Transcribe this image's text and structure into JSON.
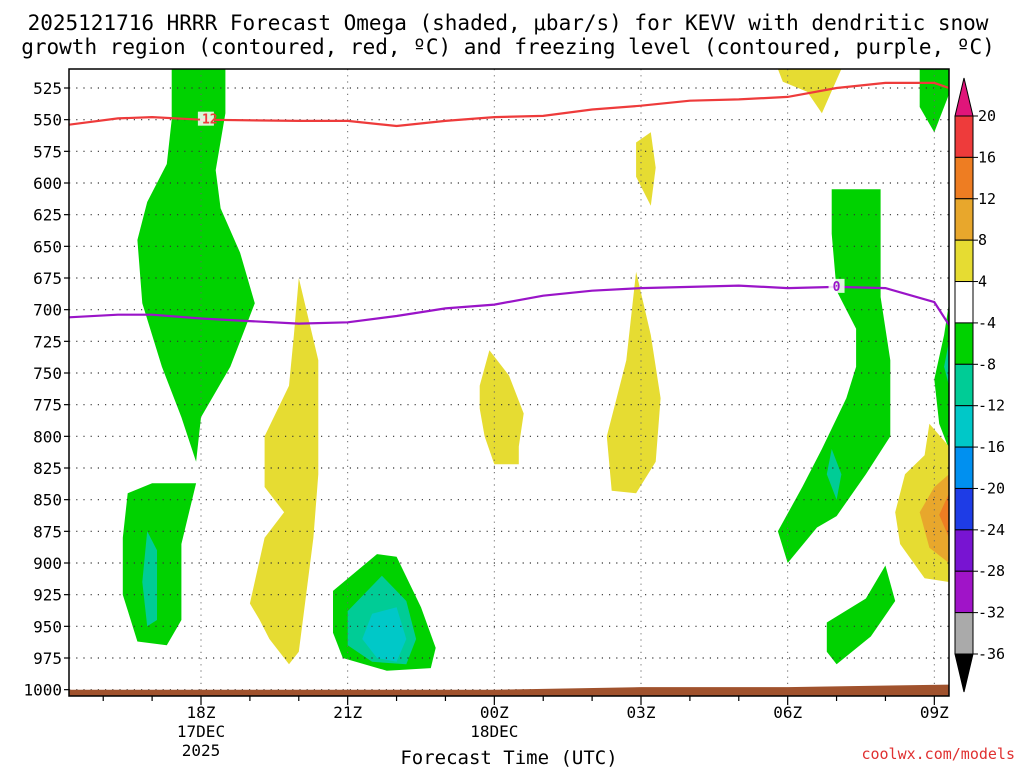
{
  "header": {
    "title_line1": "2025121716 HRRR Forecast Omega (shaded, μbar/s) for KEVV with dendritic snow",
    "title_line2": "growth region (contoured, red, ºC) and freezing level (contoured, purple, ºC)"
  },
  "footer": {
    "credit": "coolwx.com/models"
  },
  "chart_data": {
    "type": "heatmap",
    "xlabel": "Forecast Time (UTC)",
    "ylabel": "",
    "x_range_hours_from_init": [
      -0.7,
      17.3
    ],
    "y_range_hpa": [
      1005,
      510
    ],
    "y_scale": "pressure",
    "grid": true,
    "y_ticks": [
      525,
      550,
      575,
      600,
      625,
      650,
      675,
      700,
      725,
      750,
      775,
      800,
      825,
      850,
      875,
      900,
      925,
      950,
      975,
      1000
    ],
    "x_ticks": [
      {
        "hour": 2,
        "lines": [
          "18Z",
          "17DEC",
          "2025"
        ]
      },
      {
        "hour": 5,
        "lines": [
          "21Z"
        ]
      },
      {
        "hour": 8,
        "lines": [
          "00Z",
          "18DEC"
        ]
      },
      {
        "hour": 11,
        "lines": [
          "03Z"
        ]
      },
      {
        "hour": 14,
        "lines": [
          "06Z"
        ]
      },
      {
        "hour": 17,
        "lines": [
          "09Z"
        ]
      }
    ],
    "colorbar": {
      "units": "μbar/s",
      "labels": [
        "20",
        "16",
        "12",
        "8",
        "4",
        "-4",
        "-8",
        "-12",
        "-16",
        "-20",
        "-24",
        "-28",
        "-32",
        "-36"
      ],
      "bins": [
        {
          "color": "#e0157a",
          "range": "> 20"
        },
        {
          "color": "#ee3b3b",
          "range": "16 to 20"
        },
        {
          "color": "#ee7d22",
          "range": "12 to 16"
        },
        {
          "color": "#e8a72c",
          "range": "8 to 12"
        },
        {
          "color": "#e6dc32",
          "range": "4 to 8"
        },
        {
          "color": "#ffffff",
          "range": "-4 to 4"
        },
        {
          "color": "#00d200",
          "range": "-8 to -4"
        },
        {
          "color": "#00cc96",
          "range": "-12 to -8"
        },
        {
          "color": "#00c8c8",
          "range": "-16 to -12"
        },
        {
          "color": "#0090f0",
          "range": "-20 to -16"
        },
        {
          "color": "#1e3ce6",
          "range": "-24 to -20"
        },
        {
          "color": "#7814d2",
          "range": "-28 to -24"
        },
        {
          "color": "#a014c8",
          "range": "-32 to -28"
        },
        {
          "color": "#aaaaaa",
          "range": "-36 to -32"
        },
        {
          "color": "#000000",
          "range": "< -36"
        }
      ]
    },
    "contours": [
      {
        "field": "dendritic snow growth region",
        "units": "ºC",
        "color": "#ee3b3b",
        "label": "-12",
        "points": [
          [
            -0.7,
            554
          ],
          [
            0.3,
            549
          ],
          [
            1.0,
            548
          ],
          [
            2.0,
            550
          ],
          [
            4.0,
            551
          ],
          [
            5.0,
            551
          ],
          [
            6.0,
            555
          ],
          [
            7.0,
            551
          ],
          [
            8.0,
            548
          ],
          [
            9.0,
            547
          ],
          [
            10.0,
            542
          ],
          [
            11.0,
            539
          ],
          [
            12.0,
            535
          ],
          [
            13.0,
            534
          ],
          [
            14.0,
            532
          ],
          [
            15.0,
            525
          ],
          [
            16.0,
            521
          ],
          [
            17.0,
            521
          ],
          [
            17.3,
            525
          ]
        ]
      },
      {
        "field": "freezing level",
        "units": "ºC",
        "color": "#9a14c8",
        "label": "0",
        "points": [
          [
            -0.7,
            706
          ],
          [
            0.3,
            704
          ],
          [
            1.0,
            704
          ],
          [
            2.0,
            707
          ],
          [
            3.0,
            709
          ],
          [
            4.0,
            711
          ],
          [
            5.0,
            710
          ],
          [
            6.0,
            705
          ],
          [
            7.0,
            699
          ],
          [
            8.0,
            696
          ],
          [
            9.0,
            689
          ],
          [
            10.0,
            685
          ],
          [
            11.0,
            683
          ],
          [
            12.0,
            682
          ],
          [
            13.0,
            681
          ],
          [
            14.0,
            683
          ],
          [
            15.0,
            682
          ],
          [
            16.0,
            683
          ],
          [
            17.0,
            694
          ],
          [
            17.3,
            712
          ]
        ]
      }
    ],
    "terrain": {
      "color": "#a0522d",
      "surface_hpa": [
        [
          -0.7,
          1000
        ],
        [
          4.0,
          1000
        ],
        [
          8.0,
          1000
        ],
        [
          11.0,
          998
        ],
        [
          14.0,
          998
        ],
        [
          17.3,
          996
        ]
      ]
    },
    "omega_regions": [
      {
        "value_bin": "-8 to -4",
        "color": "#00d200",
        "points": [
          [
            1.4,
            510
          ],
          [
            2.5,
            510
          ],
          [
            2.5,
            545
          ],
          [
            2.3,
            590
          ],
          [
            2.4,
            620
          ],
          [
            2.8,
            655
          ],
          [
            3.1,
            695
          ],
          [
            2.6,
            745
          ],
          [
            2.0,
            785
          ],
          [
            1.9,
            820
          ],
          [
            1.6,
            785
          ],
          [
            1.2,
            745
          ],
          [
            0.8,
            695
          ],
          [
            0.7,
            645
          ],
          [
            0.9,
            615
          ],
          [
            1.3,
            585
          ],
          [
            1.4,
            550
          ]
        ]
      },
      {
        "value_bin": "-8 to -4",
        "color": "#00d200",
        "points": [
          [
            0.5,
            845
          ],
          [
            1.0,
            837
          ],
          [
            1.9,
            837
          ],
          [
            1.6,
            885
          ],
          [
            1.6,
            945
          ],
          [
            1.3,
            965
          ],
          [
            0.7,
            962
          ],
          [
            0.4,
            925
          ],
          [
            0.4,
            880
          ]
        ]
      },
      {
        "value_bin": "-12 to -8",
        "color": "#00cc96",
        "points": [
          [
            0.9,
            875
          ],
          [
            1.1,
            890
          ],
          [
            1.1,
            945
          ],
          [
            0.9,
            950
          ],
          [
            0.8,
            915
          ]
        ]
      },
      {
        "value_bin": "-8 to -4",
        "color": "#00d200",
        "points": [
          [
            4.7,
            922
          ],
          [
            5.6,
            893
          ],
          [
            6.0,
            895
          ],
          [
            6.5,
            935
          ],
          [
            6.8,
            967
          ],
          [
            6.7,
            983
          ],
          [
            5.8,
            985
          ],
          [
            4.9,
            975
          ],
          [
            4.7,
            955
          ]
        ]
      },
      {
        "value_bin": "-12 to -8",
        "color": "#00cc96",
        "points": [
          [
            5.0,
            938
          ],
          [
            5.7,
            910
          ],
          [
            6.2,
            930
          ],
          [
            6.4,
            960
          ],
          [
            6.2,
            980
          ],
          [
            5.5,
            978
          ],
          [
            5.0,
            965
          ]
        ]
      },
      {
        "value_bin": "-16 to -12",
        "color": "#00c8c8",
        "points": [
          [
            5.5,
            940
          ],
          [
            6.0,
            935
          ],
          [
            6.2,
            960
          ],
          [
            6.0,
            978
          ],
          [
            5.6,
            975
          ],
          [
            5.3,
            960
          ]
        ]
      },
      {
        "value_bin": "-8 to -4",
        "color": "#00d200",
        "points": [
          [
            14.9,
            605
          ],
          [
            15.9,
            605
          ],
          [
            15.9,
            640
          ],
          [
            15.9,
            690
          ],
          [
            16.1,
            740
          ],
          [
            16.1,
            800
          ],
          [
            15.6,
            830
          ],
          [
            15.0,
            863
          ],
          [
            14.6,
            872
          ],
          [
            14.0,
            900
          ],
          [
            13.8,
            875
          ],
          [
            14.3,
            840
          ],
          [
            14.7,
            810
          ],
          [
            15.2,
            770
          ],
          [
            15.4,
            745
          ],
          [
            15.4,
            715
          ],
          [
            15.0,
            685
          ],
          [
            14.9,
            640
          ]
        ]
      },
      {
        "value_bin": "-12 to -8",
        "color": "#00cc96",
        "points": [
          [
            14.9,
            810
          ],
          [
            15.1,
            830
          ],
          [
            15.0,
            850
          ],
          [
            14.8,
            830
          ]
        ]
      },
      {
        "value_bin": "-8 to -4",
        "color": "#00d200",
        "points": [
          [
            14.8,
            947
          ],
          [
            15.6,
            928
          ],
          [
            16.0,
            902
          ],
          [
            16.2,
            930
          ],
          [
            15.7,
            958
          ],
          [
            15.0,
            980
          ],
          [
            14.8,
            970
          ]
        ]
      },
      {
        "value_bin": "-8 to -4",
        "color": "#00d200",
        "points": [
          [
            16.7,
            510
          ],
          [
            17.3,
            510
          ],
          [
            17.3,
            530
          ],
          [
            17.0,
            560
          ],
          [
            16.7,
            540
          ]
        ]
      },
      {
        "value_bin": "-8 to -4",
        "color": "#00d200",
        "points": [
          [
            17.3,
            695
          ],
          [
            17.3,
            810
          ],
          [
            17.1,
            790
          ],
          [
            17.0,
            755
          ],
          [
            17.2,
            720
          ]
        ]
      },
      {
        "value_bin": "-12 to -8",
        "color": "#00cc96",
        "points": [
          [
            17.3,
            725
          ],
          [
            17.3,
            760
          ],
          [
            17.2,
            745
          ]
        ]
      },
      {
        "value_bin": "4 to 8",
        "color": "#e6dc32",
        "points": [
          [
            4.0,
            675
          ],
          [
            4.4,
            740
          ],
          [
            4.4,
            830
          ],
          [
            4.3,
            880
          ],
          [
            4.1,
            940
          ],
          [
            4.0,
            970
          ],
          [
            3.8,
            980
          ],
          [
            3.4,
            960
          ],
          [
            3.2,
            945
          ],
          [
            3.0,
            932
          ],
          [
            3.3,
            880
          ],
          [
            3.7,
            860
          ],
          [
            3.3,
            840
          ],
          [
            3.3,
            800
          ],
          [
            3.8,
            760
          ],
          [
            3.9,
            720
          ]
        ]
      },
      {
        "value_bin": "4 to 8",
        "color": "#e6dc32",
        "points": [
          [
            7.9,
            732
          ],
          [
            8.3,
            752
          ],
          [
            8.6,
            782
          ],
          [
            8.5,
            808
          ],
          [
            8.5,
            822
          ],
          [
            8.0,
            822
          ],
          [
            7.8,
            800
          ],
          [
            7.7,
            778
          ],
          [
            7.7,
            760
          ]
        ]
      },
      {
        "value_bin": "4 to 8",
        "color": "#e6dc32",
        "points": [
          [
            10.9,
            568
          ],
          [
            11.2,
            560
          ],
          [
            11.3,
            588
          ],
          [
            11.2,
            618
          ],
          [
            10.9,
            595
          ]
        ]
      },
      {
        "value_bin": "4 to 8",
        "color": "#e6dc32",
        "points": [
          [
            10.9,
            670
          ],
          [
            11.2,
            720
          ],
          [
            11.4,
            770
          ],
          [
            11.3,
            820
          ],
          [
            10.9,
            845
          ],
          [
            10.4,
            843
          ],
          [
            10.3,
            800
          ],
          [
            10.5,
            770
          ],
          [
            10.7,
            740
          ]
        ]
      },
      {
        "value_bin": "4 to 8",
        "color": "#e6dc32",
        "points": [
          [
            13.8,
            510
          ],
          [
            15.1,
            510
          ],
          [
            14.7,
            545
          ],
          [
            14.4,
            528
          ],
          [
            13.9,
            520
          ]
        ]
      },
      {
        "value_bin": "4 to 8",
        "color": "#e6dc32",
        "points": [
          [
            16.9,
            790
          ],
          [
            17.3,
            808
          ],
          [
            17.3,
            915
          ],
          [
            16.8,
            912
          ],
          [
            16.3,
            885
          ],
          [
            16.2,
            860
          ],
          [
            16.4,
            830
          ],
          [
            16.8,
            815
          ]
        ]
      },
      {
        "value_bin": "8 to 12",
        "color": "#e8a72c",
        "points": [
          [
            17.3,
            830
          ],
          [
            17.3,
            900
          ],
          [
            16.9,
            888
          ],
          [
            16.7,
            860
          ],
          [
            17.0,
            840
          ]
        ]
      },
      {
        "value_bin": "12 to 16",
        "color": "#ee7d22",
        "points": [
          [
            17.3,
            845
          ],
          [
            17.3,
            880
          ],
          [
            17.1,
            862
          ]
        ]
      }
    ]
  }
}
